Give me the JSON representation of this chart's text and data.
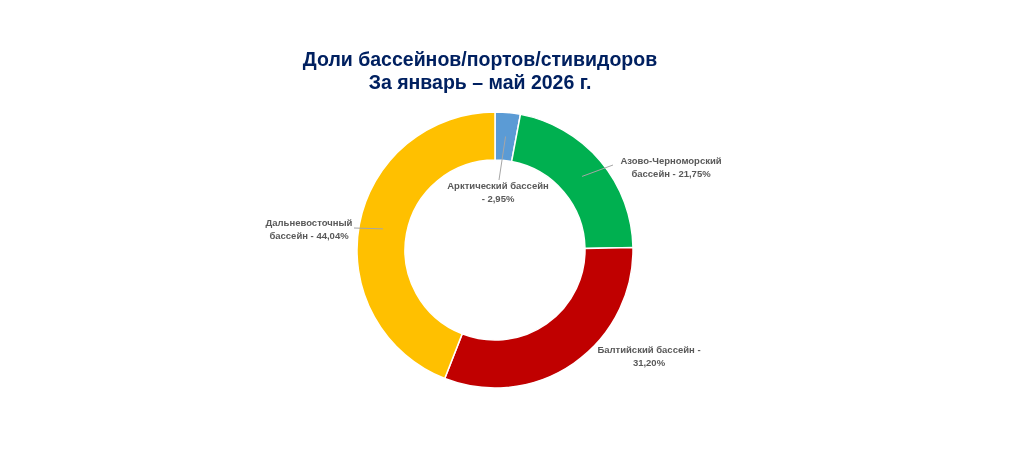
{
  "chart_data": {
    "type": "donut",
    "title": "Доли бассейнов/портов/стивидоров\nЗа январь – май 2026 г.",
    "categories": [
      "Арктический бассейн - 2,95%",
      "Азово-Черноморский бассейн - 21,75%",
      "Балтийский бассейн - 31,20%",
      "Дальневосточный бассейн - 44,04%"
    ],
    "values": [
      2.95,
      21.75,
      31.2,
      44.04
    ],
    "colors": [
      "#5b9bd5",
      "#00b050",
      "#c00000",
      "#ffc000"
    ]
  }
}
